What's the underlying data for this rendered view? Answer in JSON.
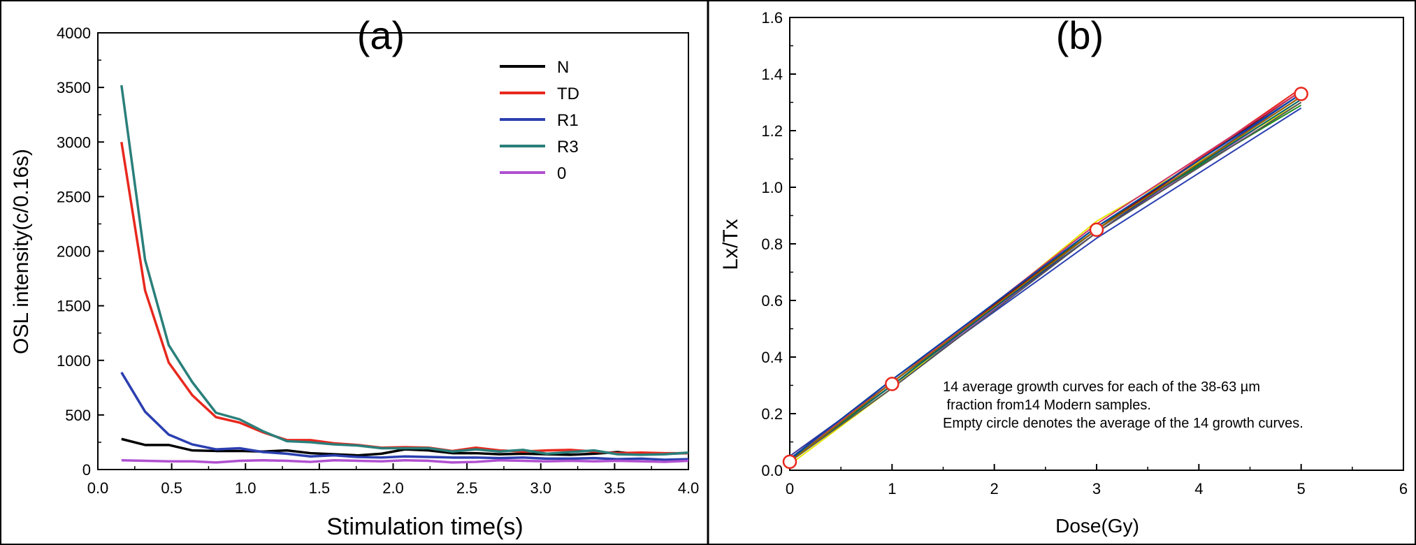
{
  "chart_data": [
    {
      "type": "line",
      "panel_label": "(a)",
      "xlabel": "Stimulation time(s)",
      "ylabel": "OSL intensity(c/0.16s)",
      "xlim": [
        0,
        4
      ],
      "ylim": [
        0,
        4000
      ],
      "x_ticks": [
        "0.0",
        "0.5",
        "1.0",
        "1.5",
        "2.0",
        "2.5",
        "3.0",
        "3.5",
        "4.0"
      ],
      "y_ticks": [
        "0",
        "500",
        "1000",
        "1500",
        "2000",
        "2500",
        "3000",
        "3500",
        "4000"
      ],
      "grid": false,
      "legend_position": "top-right",
      "x": [
        0.16,
        0.32,
        0.48,
        0.64,
        0.8,
        0.96,
        1.12,
        1.28,
        1.44,
        1.6,
        1.76,
        1.92,
        2.08,
        2.24,
        2.4,
        2.56,
        2.72,
        2.88,
        3.04,
        3.2,
        3.36,
        3.52,
        3.68,
        3.84,
        4.0
      ],
      "series": [
        {
          "name": "N",
          "color": "#000000",
          "values": [
            280,
            225,
            225,
            175,
            170,
            170,
            165,
            175,
            150,
            140,
            130,
            145,
            185,
            175,
            150,
            150,
            140,
            145,
            140,
            135,
            145,
            160,
            140,
            145,
            150
          ]
        },
        {
          "name": "TD",
          "color": "#e8281e",
          "values": [
            3000,
            1640,
            980,
            680,
            480,
            430,
            340,
            270,
            270,
            240,
            225,
            200,
            205,
            200,
            170,
            200,
            175,
            165,
            175,
            180,
            165,
            150,
            155,
            150,
            150
          ]
        },
        {
          "name": "R1",
          "color": "#2b3fb0",
          "values": [
            890,
            530,
            320,
            230,
            185,
            195,
            160,
            145,
            120,
            130,
            115,
            110,
            120,
            115,
            110,
            110,
            105,
            110,
            100,
            100,
            105,
            95,
            100,
            90,
            95
          ]
        },
        {
          "name": "R3",
          "color": "#2a7f7a",
          "values": [
            3520,
            1920,
            1140,
            800,
            520,
            460,
            350,
            260,
            250,
            230,
            220,
            195,
            195,
            195,
            165,
            185,
            165,
            180,
            145,
            160,
            175,
            140,
            135,
            140,
            155
          ]
        },
        {
          "name": "0",
          "color": "#b050d0",
          "values": [
            85,
            80,
            75,
            75,
            65,
            80,
            85,
            80,
            70,
            85,
            80,
            75,
            85,
            80,
            65,
            70,
            85,
            80,
            75,
            80,
            75,
            80,
            75,
            70,
            80
          ]
        }
      ]
    },
    {
      "type": "line",
      "panel_label": "(b)",
      "xlabel": "Dose(Gy)",
      "ylabel": "Lx/Tx",
      "xlim": [
        0,
        6
      ],
      "ylim": [
        0,
        1.6
      ],
      "x_ticks": [
        "0",
        "1",
        "2",
        "3",
        "4",
        "5",
        "6"
      ],
      "y_ticks": [
        "0.0",
        "0.2",
        "0.4",
        "0.6",
        "0.8",
        "1.0",
        "1.2",
        "1.4",
        "1.6"
      ],
      "grid": false,
      "x": [
        0,
        1,
        3,
        5
      ],
      "series": [
        {
          "color": "#000000",
          "values": [
            0.04,
            0.32,
            0.85,
            1.32
          ]
        },
        {
          "color": "#e8281e",
          "values": [
            0.03,
            0.31,
            0.85,
            1.35
          ]
        },
        {
          "color": "#2b3fb0",
          "values": [
            0.035,
            0.3,
            0.82,
            1.28
          ]
        },
        {
          "color": "#2a7f7a",
          "values": [
            0.04,
            0.31,
            0.86,
            1.33
          ]
        },
        {
          "color": "#b050d0",
          "values": [
            0.03,
            0.3,
            0.84,
            1.31
          ]
        },
        {
          "color": "#e6e600",
          "values": [
            0.02,
            0.29,
            0.88,
            1.3
          ]
        },
        {
          "color": "#1a8c1a",
          "values": [
            0.03,
            0.3,
            0.86,
            1.29
          ]
        },
        {
          "color": "#8b0000",
          "values": [
            0.04,
            0.32,
            0.85,
            1.34
          ]
        },
        {
          "color": "#333399",
          "values": [
            0.05,
            0.31,
            0.84,
            1.33
          ]
        },
        {
          "color": "#555555",
          "values": [
            0.03,
            0.29,
            0.84,
            1.3
          ]
        },
        {
          "color": "#cc3366",
          "values": [
            0.04,
            0.31,
            0.87,
            1.34
          ]
        },
        {
          "color": "#006666",
          "values": [
            0.035,
            0.3,
            0.85,
            1.31
          ]
        },
        {
          "color": "#996600",
          "values": [
            0.03,
            0.31,
            0.85,
            1.32
          ]
        },
        {
          "color": "#0044aa",
          "values": [
            0.04,
            0.32,
            0.86,
            1.33
          ]
        }
      ],
      "average": {
        "marker": "open-circle",
        "marker_color": "#e8281e",
        "values": [
          0.03,
          0.305,
          0.85,
          1.33
        ]
      },
      "annotation": [
        "14 average growth curves for each of the 38-63 µm",
        " fraction from14 Modern samples.",
        "Empty circle denotes the average of the 14 growth curves."
      ]
    }
  ]
}
